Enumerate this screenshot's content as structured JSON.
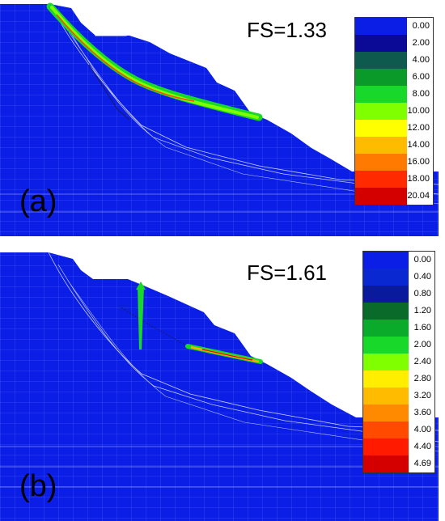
{
  "panels": [
    {
      "id": "a",
      "letter": "(a)",
      "fs_text": "FS=1.33",
      "legend": [
        {
          "value": "0.00",
          "color": "#0a1ee6"
        },
        {
          "value": "2.00",
          "color": "#0a0a96"
        },
        {
          "value": "4.00",
          "color": "#0f5a4e"
        },
        {
          "value": "6.00",
          "color": "#0a9a2a"
        },
        {
          "value": "8.00",
          "color": "#18d82a"
        },
        {
          "value": "10.00",
          "color": "#7fff00"
        },
        {
          "value": "12.00",
          "color": "#ffff00"
        },
        {
          "value": "14.00",
          "color": "#ffbb00"
        },
        {
          "value": "16.00",
          "color": "#ff7a00"
        },
        {
          "value": "18.00",
          "color": "#ff2a00"
        },
        {
          "value": "20.04",
          "color": "#d40000"
        }
      ]
    },
    {
      "id": "b",
      "letter": "(b)",
      "fs_text": "FS=1.61",
      "legend": [
        {
          "value": "0.00",
          "color": "#0a1ee6"
        },
        {
          "value": "0.40",
          "color": "#0a28d2"
        },
        {
          "value": "0.80",
          "color": "#0a1a9c"
        },
        {
          "value": "1.20",
          "color": "#0a6a2a"
        },
        {
          "value": "1.60",
          "color": "#0aaa2a"
        },
        {
          "value": "2.00",
          "color": "#18d82a"
        },
        {
          "value": "2.40",
          "color": "#7fff00"
        },
        {
          "value": "2.80",
          "color": "#ffee00"
        },
        {
          "value": "3.20",
          "color": "#ffbb00"
        },
        {
          "value": "3.60",
          "color": "#ff8a00"
        },
        {
          "value": "4.00",
          "color": "#ff4a00"
        },
        {
          "value": "4.40",
          "color": "#ff1a00"
        },
        {
          "value": "4.69",
          "color": "#d40000"
        }
      ]
    }
  ]
}
